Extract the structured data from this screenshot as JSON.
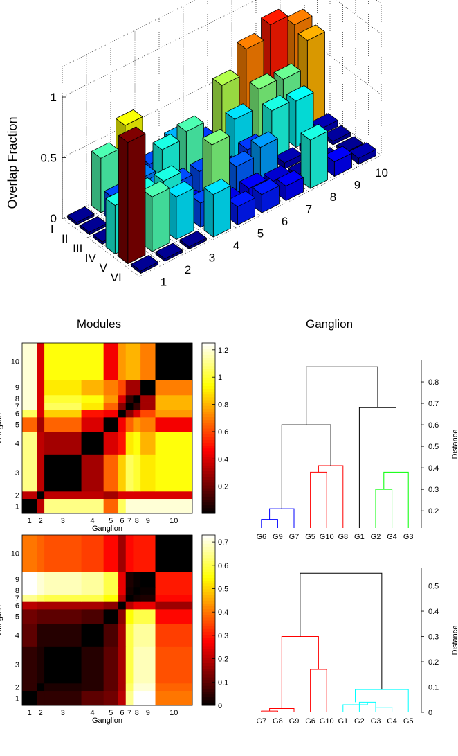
{
  "chart_data": [
    {
      "type": "bar3d",
      "title": "",
      "xlabel": "Modules",
      "ylabel": "Ganglion",
      "zlabel": "Overlap Fraction",
      "zticks": [
        "0",
        "0.5",
        "1"
      ],
      "zlim": [
        0,
        1
      ],
      "modules": [
        "I",
        "II",
        "III",
        "IV",
        "V",
        "VI"
      ],
      "ganglia": [
        "1",
        "2",
        "3",
        "4",
        "5",
        "6",
        "7",
        "8",
        "9",
        "10"
      ],
      "values_by_module": [
        [
          0.02,
          0.45,
          0.62,
          0.2,
          0.3,
          0.18,
          0.55,
          0.75,
          0.85,
          0.75
        ],
        [
          0.02,
          0.2,
          0.25,
          0.4,
          0.45,
          0.2,
          0.35,
          0.5,
          0.48,
          0.7
        ],
        [
          0.02,
          0.02,
          0.25,
          0.2,
          0.2,
          0.1,
          0.18,
          0.4,
          0.38,
          0.05
        ],
        [
          0.4,
          0.4,
          0.4,
          0.1,
          0.5,
          0.22,
          0.28,
          0.05,
          0.05,
          0.03
        ],
        [
          1.0,
          0.45,
          0.35,
          0.2,
          0.1,
          0.12,
          0.08,
          0.03,
          0.03,
          0.02
        ],
        [
          0.02,
          0.02,
          0.02,
          0.35,
          0.15,
          0.15,
          0.12,
          0.4,
          0.12,
          0.05
        ]
      ],
      "colors": {
        "low": "#00008f",
        "high": "#800000"
      }
    },
    {
      "type": "heatmap",
      "xlabel": "Ganglion",
      "ylabel": "Ganglion",
      "tick_labels": [
        "1",
        "2",
        "3",
        "4",
        "5",
        "6",
        "7",
        "8",
        "9",
        "10"
      ],
      "cell_sizes": [
        2,
        1,
        5,
        3,
        2,
        1,
        1,
        1,
        2,
        5
      ],
      "colorbar_ticks": [
        "0.2",
        "0.4",
        "0.6",
        "0.8",
        "1",
        "1.2"
      ],
      "colorbar_range": [
        0,
        1.25
      ],
      "matrix": [
        [
          0.0,
          0.35,
          1.1,
          1.1,
          0.65,
          1.05,
          1.2,
          1.2,
          1.2,
          1.2
        ],
        [
          0.35,
          0.0,
          0.35,
          0.35,
          0.3,
          0.4,
          0.4,
          0.4,
          0.4,
          0.4
        ],
        [
          1.1,
          0.35,
          0.0,
          0.3,
          0.65,
          0.85,
          1.05,
          1.0,
          0.9,
          0.95
        ],
        [
          1.1,
          0.35,
          0.3,
          0.0,
          0.4,
          0.5,
          0.9,
          0.95,
          0.8,
          0.95
        ],
        [
          0.65,
          0.3,
          0.65,
          0.4,
          0.0,
          0.45,
          0.65,
          0.75,
          0.7,
          0.45
        ],
        [
          1.05,
          0.4,
          0.85,
          0.5,
          0.45,
          0.0,
          0.25,
          0.4,
          0.6,
          0.75
        ],
        [
          1.2,
          0.4,
          1.05,
          0.9,
          0.65,
          0.25,
          0.0,
          0.1,
          0.3,
          0.8
        ],
        [
          1.2,
          0.4,
          1.0,
          0.95,
          0.75,
          0.4,
          0.1,
          0.0,
          0.3,
          0.8
        ],
        [
          1.2,
          0.4,
          0.9,
          0.8,
          0.7,
          0.6,
          0.3,
          0.3,
          0.0,
          0.7
        ],
        [
          1.2,
          0.4,
          0.95,
          0.95,
          0.45,
          0.75,
          0.8,
          0.8,
          0.7,
          0.0
        ]
      ]
    },
    {
      "type": "dendrogram",
      "ylabel": "Distance",
      "yticks": [
        "0.2",
        "0.3",
        "0.4",
        "0.5",
        "0.6",
        "0.7",
        "0.8"
      ],
      "ylim": [
        0.12,
        0.9
      ],
      "leaves": [
        "G6",
        "G9",
        "G7",
        "G5",
        "G10",
        "G8",
        "G1",
        "G2",
        "G4",
        "G3"
      ],
      "merges": [
        {
          "a": "G6",
          "b": "G9",
          "height": 0.16,
          "color": "#0000ff"
        },
        {
          "a": "G6+G9",
          "b": "G7",
          "height": 0.21,
          "color": "#0000ff"
        },
        {
          "a": "G5",
          "b": "G10",
          "height": 0.38,
          "color": "#ff0000"
        },
        {
          "a": "G5+G10",
          "b": "G8",
          "height": 0.41,
          "color": "#ff0000"
        },
        {
          "a": "G2",
          "b": "G4",
          "height": 0.3,
          "color": "#00ff00"
        },
        {
          "a": "G2+G4",
          "b": "G3",
          "height": 0.38,
          "color": "#00ff00"
        },
        {
          "a": "blue",
          "b": "red",
          "height": 0.6,
          "color": "#000000"
        },
        {
          "a": "G1",
          "b": "green",
          "height": 0.68,
          "color": "#000000"
        },
        {
          "a": "left",
          "b": "right",
          "height": 0.87,
          "color": "#000000"
        }
      ]
    },
    {
      "type": "heatmap",
      "xlabel": "Ganglion",
      "ylabel": "Ganglion",
      "tick_labels": [
        "1",
        "2",
        "3",
        "4",
        "5",
        "6",
        "7",
        "8",
        "9",
        "10"
      ],
      "cell_sizes": [
        2,
        1,
        5,
        3,
        2,
        1,
        1,
        1,
        2,
        5
      ],
      "colorbar_ticks": [
        "0",
        "0.1",
        "0.2",
        "0.3",
        "0.4",
        "0.5",
        "0.6",
        "0.7"
      ],
      "colorbar_range": [
        0,
        0.73
      ],
      "matrix": [
        [
          0.0,
          0.05,
          0.05,
          0.1,
          0.12,
          0.2,
          0.65,
          0.73,
          0.73,
          0.4
        ],
        [
          0.05,
          0.0,
          0.03,
          0.04,
          0.1,
          0.18,
          0.62,
          0.7,
          0.7,
          0.38
        ],
        [
          0.05,
          0.03,
          0.0,
          0.04,
          0.1,
          0.18,
          0.6,
          0.68,
          0.68,
          0.36
        ],
        [
          0.1,
          0.04,
          0.04,
          0.0,
          0.08,
          0.18,
          0.6,
          0.66,
          0.66,
          0.34
        ],
        [
          0.12,
          0.1,
          0.1,
          0.08,
          0.0,
          0.15,
          0.55,
          0.6,
          0.6,
          0.28
        ],
        [
          0.2,
          0.18,
          0.18,
          0.18,
          0.15,
          0.0,
          0.2,
          0.25,
          0.25,
          0.17
        ],
        [
          0.65,
          0.62,
          0.6,
          0.6,
          0.55,
          0.2,
          0.0,
          0.02,
          0.03,
          0.28
        ],
        [
          0.73,
          0.7,
          0.68,
          0.66,
          0.6,
          0.25,
          0.02,
          0.0,
          0.01,
          0.3
        ],
        [
          0.73,
          0.7,
          0.68,
          0.66,
          0.6,
          0.25,
          0.03,
          0.01,
          0.0,
          0.3
        ],
        [
          0.4,
          0.38,
          0.36,
          0.34,
          0.28,
          0.17,
          0.28,
          0.3,
          0.3,
          0.0
        ]
      ]
    },
    {
      "type": "dendrogram",
      "ylabel": "Distance",
      "yticks": [
        "0",
        "0.1",
        "0.2",
        "0.3",
        "0.4",
        "0.5"
      ],
      "ylim": [
        0,
        0.57
      ],
      "leaves": [
        "G7",
        "G8",
        "G9",
        "G6",
        "G10",
        "G1",
        "G2",
        "G3",
        "G4",
        "G5"
      ],
      "merges": [
        {
          "a": "G7",
          "b": "G8",
          "height": 0.005,
          "color": "#ff0000"
        },
        {
          "a": "G7+G8",
          "b": "G9",
          "height": 0.015,
          "color": "#ff0000"
        },
        {
          "a": "G6",
          "b": "G10",
          "height": 0.17,
          "color": "#ff0000"
        },
        {
          "a": "G7G8G9",
          "b": "G6+G10",
          "height": 0.3,
          "color": "#ff0000"
        },
        {
          "a": "G2",
          "b": "G3",
          "height": 0.04,
          "color": "#00ffff"
        },
        {
          "a": "G1",
          "b": "G2+G3",
          "height": 0.03,
          "color": "#00ffff"
        },
        {
          "a": "G3",
          "b": "G4",
          "height": 0.02,
          "color": "#00ffff"
        },
        {
          "a": "G1-G4",
          "b": "G5",
          "height": 0.09,
          "color": "#00ffff"
        },
        {
          "a": "red",
          "b": "cyan",
          "height": 0.55,
          "color": "#000000"
        }
      ]
    }
  ]
}
